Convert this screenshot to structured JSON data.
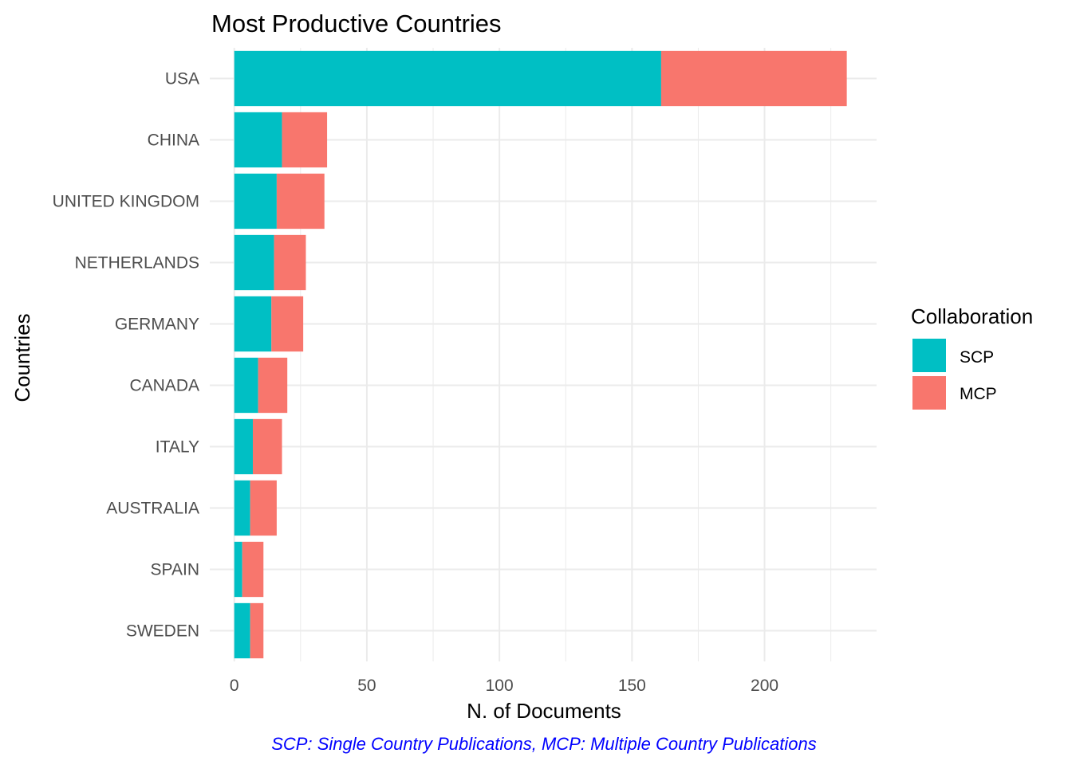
{
  "chart_data": {
    "type": "bar",
    "orientation": "horizontal",
    "stacked": true,
    "title": "Most Productive Countries",
    "xlabel": "N. of Documents",
    "ylabel": "Countries",
    "caption": "SCP: Single Country Publications, MCP: Multiple Country Publications",
    "categories": [
      "USA",
      "CHINA",
      "UNITED KINGDOM",
      "NETHERLANDS",
      "GERMANY",
      "CANADA",
      "ITALY",
      "AUSTRALIA",
      "SPAIN",
      "SWEDEN"
    ],
    "series": [
      {
        "name": "SCP",
        "color": "#00bfc4",
        "values": [
          161,
          18,
          16,
          15,
          14,
          9,
          7,
          6,
          3,
          6
        ]
      },
      {
        "name": "MCP",
        "color": "#f8766d",
        "values": [
          70,
          17,
          18,
          12,
          12,
          11,
          11,
          10,
          8,
          5
        ]
      }
    ],
    "xlim": [
      -9.24,
      242.24
    ],
    "xticks": [
      0,
      50,
      100,
      150,
      200
    ],
    "xtick_labels": [
      "0",
      "50",
      "100",
      "150",
      "200"
    ],
    "grid": true,
    "legend": {
      "title": "Collaboration",
      "position": "right",
      "entries": [
        "SCP",
        "MCP"
      ]
    }
  }
}
